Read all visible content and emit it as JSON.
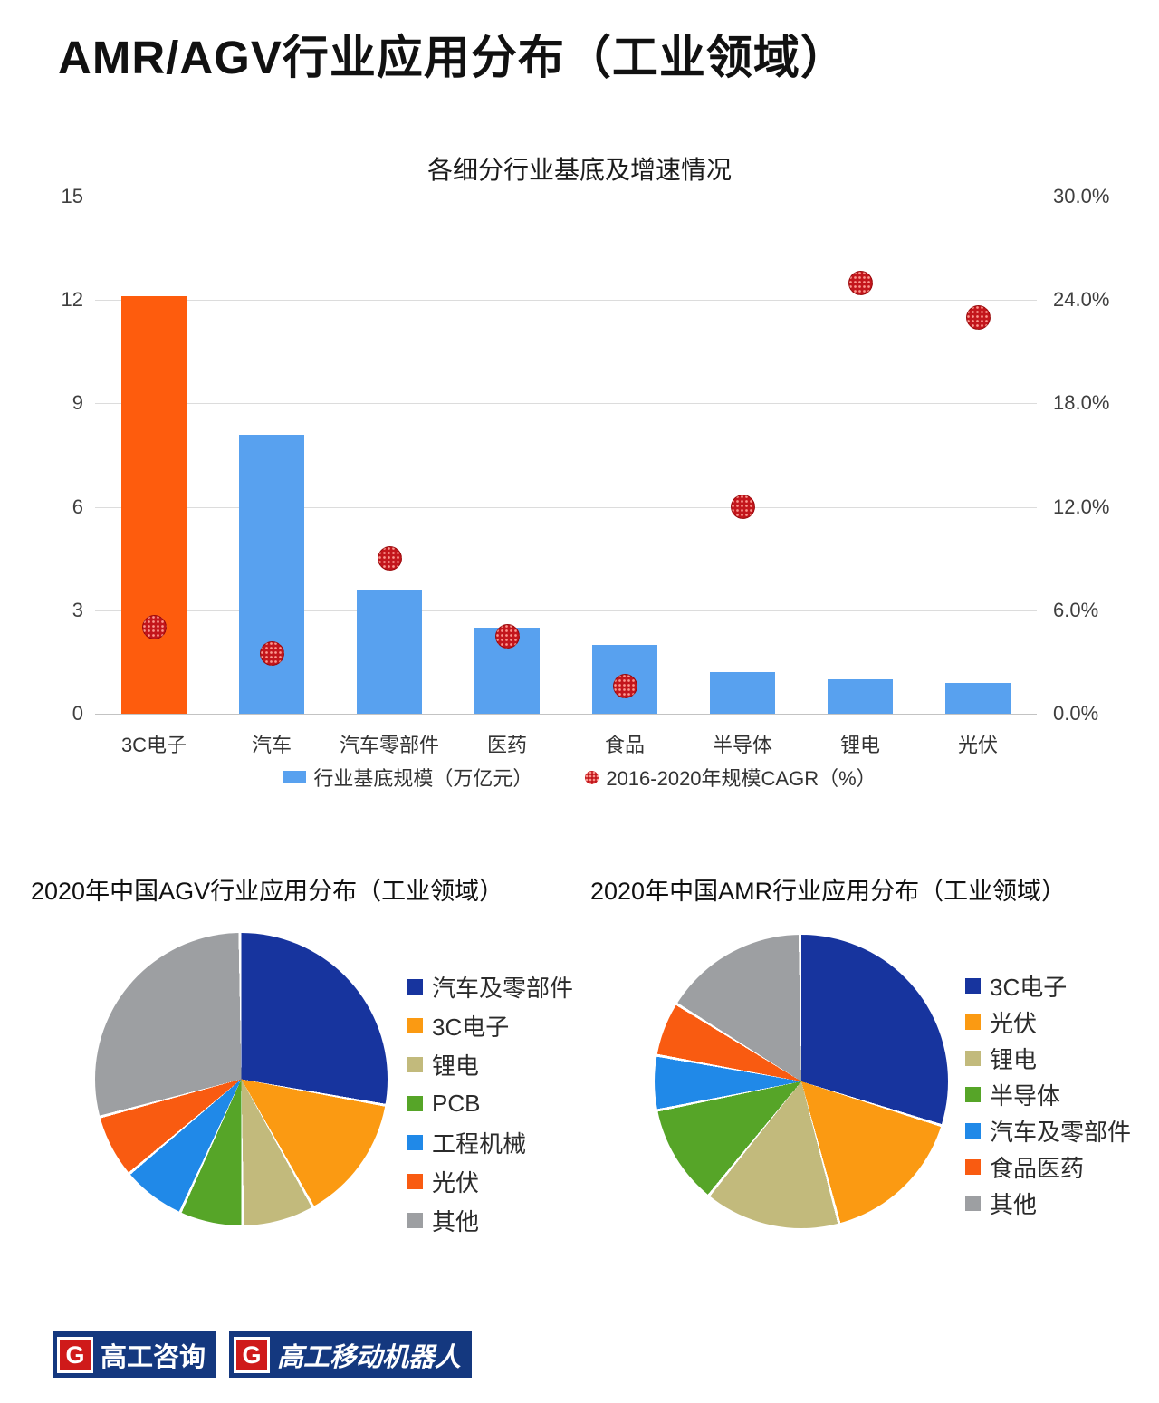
{
  "page_title": "AMR/AGV行业应用分布（工业领域）",
  "chart_data": [
    {
      "type": "bar",
      "title": "各细分行业基底及增速情况",
      "categories": [
        "3C电子",
        "汽车",
        "汽车零部件",
        "医药",
        "食品",
        "半导体",
        "锂电",
        "光伏"
      ],
      "series": [
        {
          "name": "行业基底规模（万亿元）",
          "render": "bar",
          "axis": "left",
          "values": [
            12.1,
            8.1,
            3.6,
            2.5,
            2.0,
            1.2,
            1.0,
            0.9
          ],
          "colors": [
            "#fe5c0d",
            "#58a1ef",
            "#58a1ef",
            "#58a1ef",
            "#58a1ef",
            "#58a1ef",
            "#58a1ef",
            "#58a1ef"
          ]
        },
        {
          "name": "2016-2020年规模CAGR（%）",
          "render": "scatter",
          "axis": "right",
          "values": [
            5.0,
            3.5,
            9.0,
            4.5,
            1.6,
            12.0,
            25.0,
            23.0
          ],
          "color": "#c3161c"
        }
      ],
      "left_axis": {
        "min": 0,
        "max": 15,
        "ticks": [
          15,
          12,
          9,
          6,
          3,
          0
        ]
      },
      "right_axis": {
        "min": 0,
        "max": 30,
        "tick_labels": [
          "30.0%",
          "24.0%",
          "18.0%",
          "12.0%",
          "6.0%",
          "0.0%"
        ]
      },
      "grid": true,
      "legend_position": "bottom"
    },
    {
      "type": "pie",
      "title": "2020年中国AGV行业应用分布（工业领域）",
      "labels": [
        "汽车及零部件",
        "3C电子",
        "锂电",
        "PCB",
        "工程机械",
        "光伏",
        "其他"
      ],
      "values": [
        28,
        14,
        8,
        7,
        7,
        7,
        29
      ],
      "colors": [
        "#17349e",
        "#fb9a12",
        "#c2ba7c",
        "#56a528",
        "#2089e8",
        "#f95b11",
        "#9d9fa2"
      ],
      "start_angle_deg": 0,
      "direction": "clockwise",
      "legend_position": "right"
    },
    {
      "type": "pie",
      "title": "2020年中国AMR行业应用分布（工业领域）",
      "labels": [
        "3C电子",
        "光伏",
        "锂电",
        "半导体",
        "汽车及零部件",
        "食品医药",
        "其他"
      ],
      "values": [
        30,
        16,
        15,
        11,
        6,
        6,
        16
      ],
      "colors": [
        "#17349e",
        "#fb9a12",
        "#c2ba7c",
        "#56a528",
        "#2089e8",
        "#f95b11",
        "#9d9fa2"
      ],
      "start_angle_deg": 0,
      "direction": "clockwise",
      "legend_position": "right"
    }
  ],
  "footer": {
    "g_letter": "G",
    "logos": [
      {
        "text": "高工咨询"
      },
      {
        "text": "高工移动机器人"
      }
    ]
  }
}
